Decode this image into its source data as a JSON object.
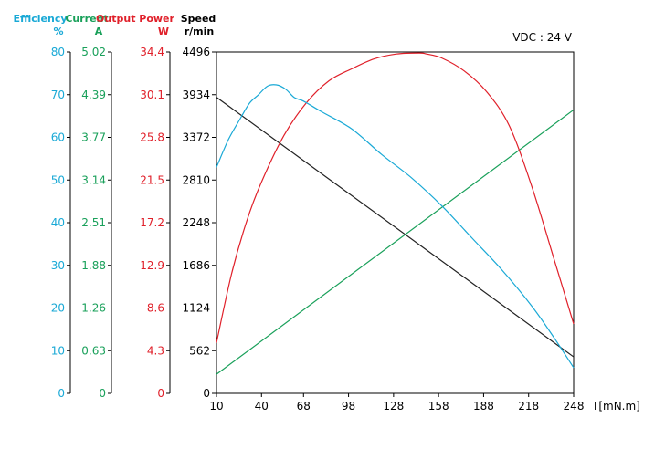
{
  "chart_data": {
    "type": "line",
    "annotation": "VDC : 24 V",
    "xlabel": "T[mN.m]",
    "x_ticks": [
      10,
      40,
      68,
      98,
      128,
      158,
      188,
      218,
      248
    ],
    "xlim": [
      10,
      248
    ],
    "colors": {
      "efficiency": "#1aa9d6",
      "current": "#19a05a",
      "power": "#e0202a",
      "speed": "#222222"
    },
    "axes": [
      {
        "id": "efficiency",
        "title": "Efficiency",
        "unit": "%",
        "ticks": [
          "0",
          "10",
          "20",
          "30",
          "40",
          "50",
          "60",
          "70",
          "80"
        ],
        "max": 80
      },
      {
        "id": "current",
        "title": "Current",
        "unit": "A",
        "ticks": [
          "0",
          "0.63",
          "1.26",
          "1.88",
          "2.51",
          "3.14",
          "3.77",
          "4.39",
          "5.02"
        ],
        "max": 5.02
      },
      {
        "id": "power",
        "title": "Output Power",
        "unit": "W",
        "ticks": [
          "0",
          "4.3",
          "8.6",
          "12.9",
          "17.2",
          "21.5",
          "25.8",
          "30.1",
          "34.4"
        ],
        "max": 34.4
      },
      {
        "id": "speed",
        "title": "Speed",
        "unit": "r/min",
        "ticks": [
          "0",
          "562",
          "1124",
          "1686",
          "2248",
          "2810",
          "3372",
          "3934",
          "4496"
        ],
        "max": 4496
      }
    ],
    "series": [
      {
        "axis": "speed",
        "x": [
          10,
          248
        ],
        "y": [
          3900,
          480
        ]
      },
      {
        "axis": "current",
        "x": [
          10,
          248
        ],
        "y": [
          0.28,
          4.17
        ]
      },
      {
        "axis": "power",
        "x": [
          10,
          20,
          30,
          40,
          55,
          70,
          85,
          100,
          115,
          130,
          145,
          150,
          160,
          175,
          190,
          205,
          220,
          235,
          248
        ],
        "y": [
          5.1,
          12.0,
          17.3,
          21.3,
          26.0,
          29.3,
          31.5,
          32.7,
          33.7,
          34.2,
          34.3,
          34.2,
          33.8,
          32.5,
          30.4,
          27.0,
          20.9,
          13.5,
          7.0
        ]
      },
      {
        "axis": "efficiency",
        "x": [
          10,
          18,
          26,
          32,
          38,
          44,
          50,
          56,
          62,
          68,
          80,
          100,
          120,
          140,
          160,
          180,
          200,
          220,
          235,
          248
        ],
        "y": [
          53,
          59.5,
          64.5,
          68.0,
          70.0,
          72.0,
          72.3,
          71.3,
          69.3,
          68.5,
          66.0,
          62.0,
          56.0,
          50.5,
          44.0,
          36.5,
          29.0,
          20.5,
          13.0,
          6.0
        ]
      }
    ]
  }
}
